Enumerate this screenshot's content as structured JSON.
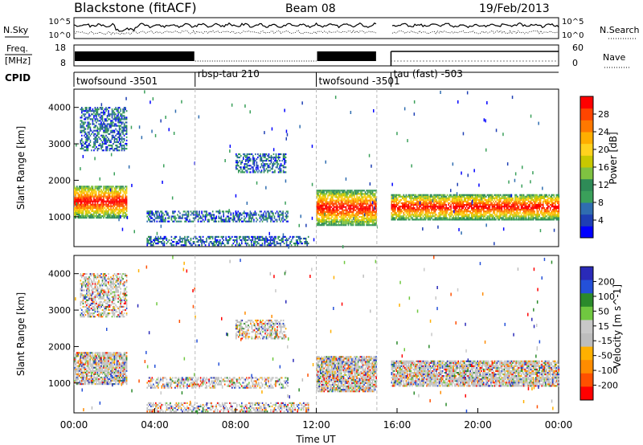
{
  "header": {
    "station": "Blackstone (fitACF)",
    "beam": "Beam 08",
    "date": "19/Feb/2013"
  },
  "labels": {
    "nsky": "N.Sky",
    "nsearch": "N.Search",
    "freq_line1": "Freq.",
    "freq_line2": "[MHz]",
    "nave": "Nave",
    "cpid": "CPID"
  },
  "noise_panel": {
    "left_ticks": [
      "10^5",
      "10^0"
    ],
    "right_ticks": [
      "10^5",
      "10^0"
    ]
  },
  "freq_panel": {
    "left_ticks": [
      "18",
      "8"
    ],
    "right_ticks": [
      "60",
      "0"
    ]
  },
  "cpid_segments": [
    {
      "label": "twofsound -3501",
      "start_h": 0.0,
      "end_h": 6.0
    },
    {
      "label": "rbsp-tau 210",
      "start_h": 6.0,
      "end_h": 12.0
    },
    {
      "label": "twofsound -3501",
      "start_h": 12.0,
      "end_h": 15.0
    },
    {
      "label": "tau (fast) -503",
      "start_h": 15.7,
      "end_h": 24.0
    }
  ],
  "colors": {
    "power": [
      "#0000ff",
      "#1e3fb4",
      "#2f6db0",
      "#3aa05a",
      "#2e8b57",
      "#7fc241",
      "#c8c800",
      "#ffd21e",
      "#ffae00",
      "#ff7800",
      "#ff4500",
      "#ff0000"
    ],
    "velocity": [
      "#2a2ab8",
      "#2450d8",
      "#2b8a2b",
      "#70c840",
      "#c8c8c8",
      "#bdbdbd",
      "#ffb000",
      "#ff8c00",
      "#ff5000",
      "#ff0000"
    ]
  },
  "chart_data": [
    {
      "type": "heatmap",
      "title": "Power",
      "xlabel": "",
      "ylabel": "Slant Range [km]",
      "xlim": [
        0,
        24
      ],
      "ylim": [
        180,
        4500
      ],
      "y_ticks": [
        1000,
        2000,
        3000,
        4000
      ],
      "colorbar": {
        "label": "Power [dB]",
        "range": [
          0,
          32
        ],
        "ticks": [
          "4",
          "8",
          "12",
          "16",
          "20",
          "24",
          "28"
        ]
      },
      "echo_regions": [
        {
          "t0": 0.0,
          "t1": 2.6,
          "r0": 950,
          "r1": 1850,
          "level": "high"
        },
        {
          "t0": 0.3,
          "t1": 2.6,
          "r0": 2800,
          "r1": 4000,
          "level": "low"
        },
        {
          "t0": 3.6,
          "t1": 10.6,
          "r0": 850,
          "r1": 1150,
          "level": "low"
        },
        {
          "t0": 3.6,
          "t1": 11.6,
          "r0": 200,
          "r1": 450,
          "level": "low"
        },
        {
          "t0": 8.0,
          "t1": 10.5,
          "r0": 2200,
          "r1": 2700,
          "level": "low"
        },
        {
          "t0": 12.0,
          "t1": 15.0,
          "r0": 750,
          "r1": 1700,
          "level": "high"
        },
        {
          "t0": 15.7,
          "t1": 24.0,
          "r0": 900,
          "r1": 1600,
          "level": "high"
        }
      ]
    },
    {
      "type": "heatmap",
      "title": "Velocity",
      "xlabel": "Time UT",
      "ylabel": "Slant Range [km]",
      "xlim": [
        0,
        24
      ],
      "ylim": [
        180,
        4500
      ],
      "x_ticks": [
        "00:00",
        "04:00",
        "08:00",
        "12:00",
        "16:00",
        "20:00",
        "00:00"
      ],
      "y_ticks": [
        1000,
        2000,
        3000,
        4000
      ],
      "colorbar": {
        "label": "Velocity [m s^-1]",
        "ticks": [
          "200",
          "100",
          "50",
          "15",
          "-15",
          "-50",
          "-100",
          "-200"
        ]
      }
    }
  ]
}
